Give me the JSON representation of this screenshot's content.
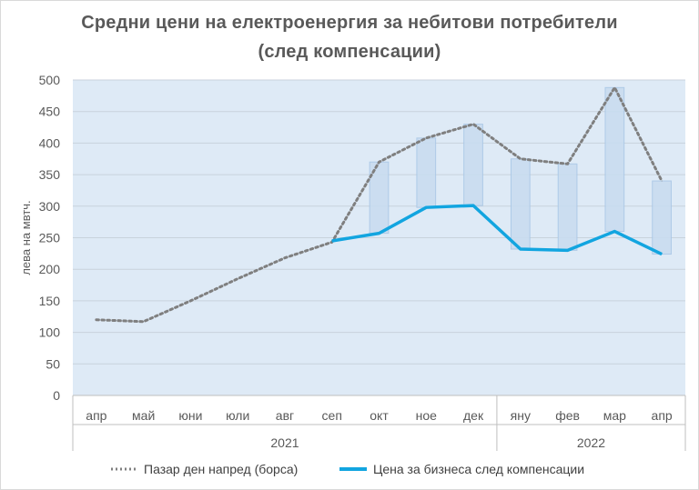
{
  "title_line1": "Средни цени на електроенергия за небитови потребители",
  "title_line2": "(след компенсации)",
  "chart_data": {
    "type": "line",
    "title": "Средни цени на електроенергия за небитови потребители (след компенсации)",
    "ylabel": "лева на мвтч.",
    "ylim": [
      0,
      500
    ],
    "yticks": [
      0,
      50,
      100,
      150,
      200,
      250,
      300,
      350,
      400,
      450,
      500
    ],
    "categories": [
      "апр",
      "май",
      "юни",
      "юли",
      "авг",
      "сеп",
      "окт",
      "ное",
      "дек",
      "яну",
      "фев",
      "мар",
      "апр"
    ],
    "year_groups": [
      {
        "label": "2021",
        "start": 0,
        "end": 8
      },
      {
        "label": "2022",
        "start": 9,
        "end": 12
      }
    ],
    "grid": true,
    "legend_position": "bottom",
    "series": [
      {
        "name": "Пазар ден напред (борса)",
        "style": "dotted",
        "color": "#7f7f7f",
        "values": [
          120,
          117,
          150,
          185,
          218,
          243,
          370,
          408,
          430,
          375,
          367,
          488,
          340
        ]
      },
      {
        "name": "Цена за бизнеса след компенсации",
        "style": "solid",
        "color": "#12a5e0",
        "values": [
          null,
          null,
          null,
          null,
          null,
          245,
          257,
          298,
          301,
          232,
          230,
          260,
          224
        ]
      }
    ],
    "compensation_bars_from_index": 6,
    "colors": {
      "plot_bg": "#deeaf6",
      "bar_fill": "#c9dcf0",
      "bar_stroke": "#a9c7e6",
      "grid": "#c8d2dc"
    }
  }
}
